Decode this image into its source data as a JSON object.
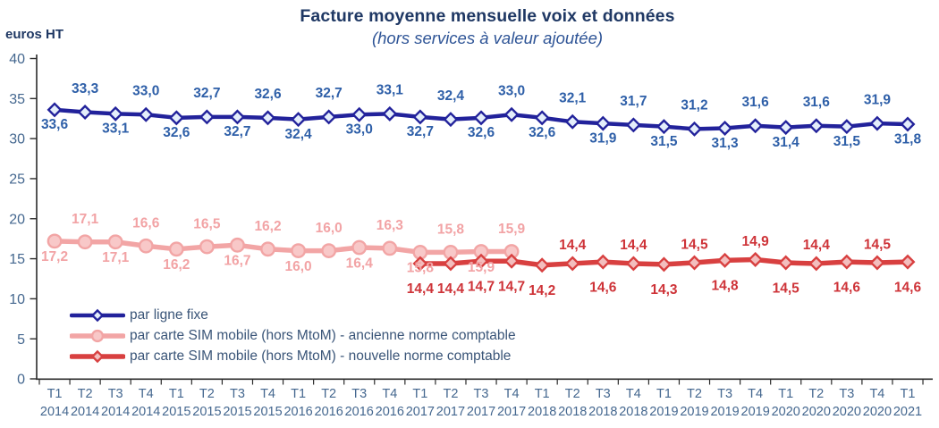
{
  "colors": {
    "axis": "#2b2b2b",
    "tick": "#44678F",
    "title": "#1F3864",
    "subtitle": "#2E5496",
    "legend_text": "#3A5578"
  },
  "chart_data": {
    "type": "line",
    "title": "Facture moyenne mensuelle voix et données",
    "subtitle": "(hors services à valeur ajoutée)",
    "ylabel": "euros HT",
    "ylim": [
      0,
      40
    ],
    "ytick_step": 5,
    "grid": false,
    "legend_position": "inside-bottom-left",
    "x_quarters": [
      "T1",
      "T2",
      "T3",
      "T4",
      "T1",
      "T2",
      "T3",
      "T4",
      "T1",
      "T2",
      "T3",
      "T4",
      "T1",
      "T2",
      "T3",
      "T4",
      "T1",
      "T2",
      "T3",
      "T4",
      "T1",
      "T2",
      "T3",
      "T4",
      "T1",
      "T2",
      "T3",
      "T4",
      "T1"
    ],
    "x_years": [
      "2014",
      "2014",
      "2014",
      "2014",
      "2015",
      "2015",
      "2015",
      "2015",
      "2016",
      "2016",
      "2016",
      "2016",
      "2017",
      "2017",
      "2017",
      "2017",
      "2018",
      "2018",
      "2018",
      "2018",
      "2019",
      "2019",
      "2019",
      "2019",
      "2020",
      "2020",
      "2020",
      "2020",
      "2021"
    ],
    "series": [
      {
        "name": "par ligne fixe",
        "marker": "diamond",
        "line_color": "#22229B",
        "marker_fill": "#E4EEFB",
        "label_color": "#2E5FA8",
        "start_index": 0,
        "values": [
          33.6,
          33.3,
          33.1,
          33.0,
          32.6,
          32.7,
          32.7,
          32.6,
          32.4,
          32.7,
          33.0,
          33.1,
          32.7,
          32.4,
          32.6,
          33.0,
          32.6,
          32.1,
          31.9,
          31.7,
          31.5,
          31.2,
          31.3,
          31.6,
          31.4,
          31.6,
          31.5,
          31.9,
          31.8
        ],
        "labels": [
          "33,6",
          "33,3",
          "33,1",
          "33,0",
          "32,6",
          "32,7",
          "32,7",
          "32,6",
          "32,4",
          "32,7",
          "33,0",
          "33,1",
          "32,7",
          "32,4",
          "32,6",
          "33,0",
          "32,6",
          "32,1",
          "31,9",
          "31,7",
          "31,5",
          "31,2",
          "31,3",
          "31,6",
          "31,4",
          "31,6",
          "31,5",
          "31,9",
          "31,8"
        ],
        "label_side": [
          "below",
          "above",
          "below",
          "above",
          "below",
          "above",
          "below",
          "above",
          "below",
          "above",
          "below",
          "above",
          "below",
          "above",
          "below",
          "above",
          "below",
          "above",
          "below",
          "above",
          "below",
          "above",
          "below",
          "above",
          "below",
          "above",
          "below",
          "above",
          "below"
        ]
      },
      {
        "name": "par carte SIM mobile (hors MtoM)  - ancienne norme comptable",
        "marker": "circle",
        "line_color": "#F2A5A5",
        "marker_fill": "#F8C8C8",
        "label_color": "#F2A3A5",
        "start_index": 0,
        "values": [
          17.2,
          17.1,
          17.1,
          16.6,
          16.2,
          16.5,
          16.7,
          16.2,
          16.0,
          16.0,
          16.4,
          16.3,
          15.8,
          15.8,
          15.9,
          15.9
        ],
        "labels": [
          "17,2",
          "17,1",
          "17,1",
          "16,6",
          "16,2",
          "16,5",
          "16,7",
          "16,2",
          "16,0",
          "16,0",
          "16,4",
          "16,3",
          "15,8",
          "15,8",
          "15,9",
          "15,9"
        ],
        "label_side": [
          "below",
          "above",
          "below",
          "above",
          "below",
          "above",
          "below",
          "above",
          "below",
          "above",
          "below",
          "above",
          "below",
          "above",
          "below",
          "above"
        ]
      },
      {
        "name": "par carte SIM mobile (hors MtoM)  - nouvelle norme comptable",
        "marker": "diamond",
        "line_color": "#D84040",
        "marker_fill": "#F3BEBE",
        "label_color": "#CE3338",
        "start_index": 12,
        "values": [
          14.4,
          14.4,
          14.7,
          14.7,
          14.2,
          14.4,
          14.6,
          14.4,
          14.3,
          14.5,
          14.8,
          14.9,
          14.5,
          14.4,
          14.6,
          14.5,
          14.6
        ],
        "labels": [
          "14,4",
          "14,4",
          "14,7",
          "14,7",
          "14,2",
          "14,4",
          "14,6",
          "14,4",
          "14,3",
          "14,5",
          "14,8",
          "14,9",
          "14,5",
          "14,4",
          "14,6",
          "14,5",
          "14,6"
        ],
        "label_side": [
          "below",
          "below",
          "below",
          "below",
          "below",
          "above",
          "below",
          "above",
          "below",
          "above",
          "below",
          "above",
          "below",
          "above",
          "below",
          "above",
          "below"
        ]
      }
    ]
  }
}
